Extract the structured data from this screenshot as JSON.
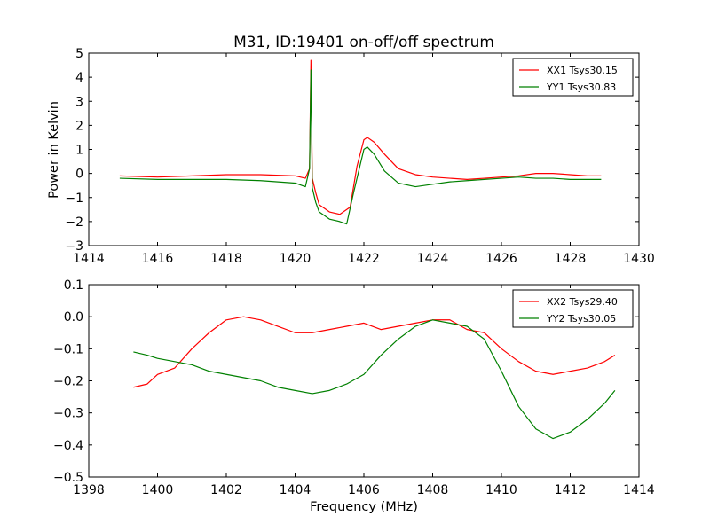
{
  "title": "M31, ID:19401 on-off/off spectrum",
  "chart_data": [
    {
      "type": "line",
      "title": "M31, ID:19401 on-off/off spectrum",
      "xlabel": "",
      "ylabel": "Power in Kelvin",
      "xlim": [
        1414,
        1430
      ],
      "ylim": [
        -3,
        5
      ],
      "xticks": [
        1414,
        1416,
        1418,
        1420,
        1422,
        1424,
        1426,
        1428,
        1430
      ],
      "yticks": [
        -3,
        -2,
        -1,
        0,
        1,
        2,
        3,
        4,
        5
      ],
      "grid": false,
      "legend_position": "top-right",
      "series": [
        {
          "name": "XX1 Tsys30.15",
          "color": "#ff0000",
          "x": [
            1414.9,
            1416,
            1417,
            1418,
            1419,
            1420,
            1420.3,
            1420.42,
            1420.46,
            1420.5,
            1420.6,
            1420.7,
            1421,
            1421.3,
            1421.6,
            1421.8,
            1422,
            1422.1,
            1422.3,
            1422.6,
            1423,
            1423.5,
            1424,
            1424.5,
            1425,
            1425.5,
            1426,
            1426.5,
            1427,
            1427.5,
            1428,
            1428.5,
            1428.9
          ],
          "y": [
            -0.1,
            -0.15,
            -0.1,
            -0.05,
            -0.05,
            -0.1,
            -0.2,
            0.2,
            4.7,
            -0.2,
            -0.8,
            -1.3,
            -1.6,
            -1.7,
            -1.4,
            0.3,
            1.4,
            1.5,
            1.3,
            0.8,
            0.2,
            -0.05,
            -0.15,
            -0.2,
            -0.25,
            -0.2,
            -0.15,
            -0.1,
            0,
            0,
            -0.05,
            -0.1,
            -0.1
          ]
        },
        {
          "name": "YY1 Tsys30.83",
          "color": "#008000",
          "x": [
            1414.9,
            1416,
            1417,
            1418,
            1419,
            1420,
            1420.3,
            1420.42,
            1420.46,
            1420.5,
            1420.6,
            1420.7,
            1421,
            1421.3,
            1421.5,
            1421.7,
            1422,
            1422.1,
            1422.3,
            1422.6,
            1423,
            1423.5,
            1424,
            1424.5,
            1425,
            1425.5,
            1426,
            1426.5,
            1427,
            1427.5,
            1428,
            1428.5,
            1428.9
          ],
          "y": [
            -0.2,
            -0.25,
            -0.25,
            -0.25,
            -0.3,
            -0.4,
            -0.55,
            0.2,
            4.3,
            -0.6,
            -1.2,
            -1.6,
            -1.9,
            -2.0,
            -2.1,
            -0.8,
            1.0,
            1.1,
            0.8,
            0.1,
            -0.4,
            -0.55,
            -0.45,
            -0.35,
            -0.3,
            -0.25,
            -0.2,
            -0.15,
            -0.2,
            -0.2,
            -0.25,
            -0.25,
            -0.25
          ]
        }
      ]
    },
    {
      "type": "line",
      "title": "",
      "xlabel": "Frequency (MHz)",
      "ylabel": "",
      "xlim": [
        1398,
        1414
      ],
      "ylim": [
        -0.5,
        0.1
      ],
      "xticks": [
        1398,
        1400,
        1402,
        1404,
        1406,
        1408,
        1410,
        1412,
        1414
      ],
      "yticks": [
        -0.5,
        -0.4,
        -0.3,
        -0.2,
        -0.1,
        0.0,
        0.1
      ],
      "ytick_labels": [
        "−0.5",
        "−0.4",
        "−0.3",
        "−0.2",
        "−0.1",
        "0.0",
        "0.1"
      ],
      "grid": false,
      "legend_position": "top-right",
      "series": [
        {
          "name": "XX2 Tsys29.40",
          "color": "#ff0000",
          "x": [
            1399.3,
            1399.7,
            1400.0,
            1400.5,
            1401.0,
            1401.5,
            1402.0,
            1402.5,
            1403.0,
            1403.5,
            1404.0,
            1404.5,
            1405.0,
            1405.5,
            1406.0,
            1406.5,
            1407.0,
            1407.5,
            1408.0,
            1408.5,
            1409.0,
            1409.5,
            1410.0,
            1410.5,
            1411.0,
            1411.5,
            1412.0,
            1412.5,
            1413.0,
            1413.3
          ],
          "y": [
            -0.22,
            -0.21,
            -0.18,
            -0.16,
            -0.1,
            -0.05,
            -0.01,
            0.0,
            -0.01,
            -0.03,
            -0.05,
            -0.05,
            -0.04,
            -0.03,
            -0.02,
            -0.04,
            -0.03,
            -0.02,
            -0.01,
            -0.01,
            -0.04,
            -0.05,
            -0.1,
            -0.14,
            -0.17,
            -0.18,
            -0.17,
            -0.16,
            -0.14,
            -0.12
          ]
        },
        {
          "name": "YY2 Tsys30.05",
          "color": "#008000",
          "x": [
            1399.3,
            1399.7,
            1400.0,
            1400.5,
            1401.0,
            1401.5,
            1402.0,
            1402.5,
            1403.0,
            1403.5,
            1404.0,
            1404.5,
            1405.0,
            1405.5,
            1406.0,
            1406.5,
            1407.0,
            1407.5,
            1408.0,
            1408.5,
            1409.0,
            1409.5,
            1410.0,
            1410.5,
            1411.0,
            1411.5,
            1412.0,
            1412.5,
            1413.0,
            1413.3
          ],
          "y": [
            -0.11,
            -0.12,
            -0.13,
            -0.14,
            -0.15,
            -0.17,
            -0.18,
            -0.19,
            -0.2,
            -0.22,
            -0.23,
            -0.24,
            -0.23,
            -0.21,
            -0.18,
            -0.12,
            -0.07,
            -0.03,
            -0.01,
            -0.02,
            -0.03,
            -0.07,
            -0.17,
            -0.28,
            -0.35,
            -0.38,
            -0.36,
            -0.32,
            -0.27,
            -0.23
          ]
        }
      ]
    }
  ]
}
